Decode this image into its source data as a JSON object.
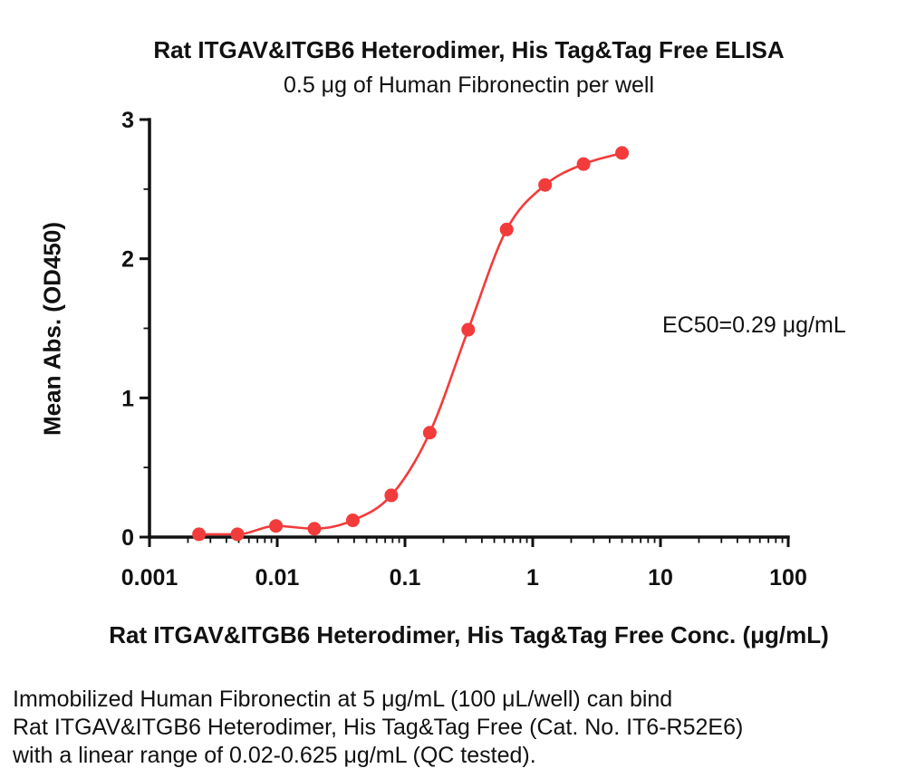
{
  "title": "Rat ITGAV&ITGB6 Heterodimer, His Tag&Tag Free ELISA",
  "subtitle": "0.5 μg of Human Fibronectin per well",
  "footer": {
    "line1": "Immobilized Human Fibronectin at 5 μg/mL (100 μL/well) can bind",
    "line2": "Rat ITGAV&ITGB6 Heterodimer, His Tag&Tag Free (Cat. No. IT6-R52E6)",
    "line3": "with a linear range of 0.02-0.625 μg/mL (QC tested)."
  },
  "chart_data": {
    "type": "scatter",
    "title": "Rat ITGAV&ITGB6 Heterodimer, His Tag&Tag Free ELISA",
    "subtitle": "0.5 μg of Human Fibronectin per well",
    "xlabel": "Rat ITGAV&ITGB6 Heterodimer, His Tag&Tag Free Conc. (μg/mL)",
    "ylabel": "Mean Abs. (OD450)",
    "x_scale": "log10",
    "xlim": [
      0.001,
      100
    ],
    "ylim": [
      0,
      3
    ],
    "x_ticks": [
      0.001,
      0.01,
      0.1,
      1,
      10,
      100
    ],
    "x_tick_labels": [
      "0.001",
      "0.01",
      "0.1",
      "1",
      "10",
      "100"
    ],
    "y_ticks": [
      0,
      1,
      2,
      3
    ],
    "y_minor_step": 0.5,
    "grid": false,
    "legend": "none",
    "ec50_label": "EC50=0.29 μg/mL",
    "marker": "circle",
    "curve_style": "smooth-sigmoid-fit",
    "series": [
      {
        "name": "Rat ITGAV&ITGB6 Heterodimer, His Tag&Tag Free",
        "color": "#f23b3b",
        "x": [
          0.00244,
          0.00488,
          0.00977,
          0.01953,
          0.03906,
          0.07813,
          0.15625,
          0.3125,
          0.625,
          1.25,
          2.5,
          5
        ],
        "y": [
          0.02,
          0.02,
          0.08,
          0.06,
          0.12,
          0.3,
          0.75,
          1.49,
          2.21,
          2.53,
          2.68,
          2.76
        ]
      }
    ]
  }
}
